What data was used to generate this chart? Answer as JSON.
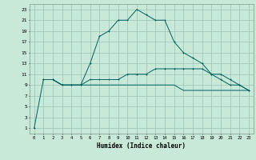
{
  "xlabel": "Humidex (Indice chaleur)",
  "bg_color": "#c8e8d8",
  "grid_color": "#a0c8b8",
  "line_color": "#006060",
  "xlim": [
    -0.5,
    23.5
  ],
  "ylim": [
    0,
    24
  ],
  "xticks": [
    0,
    1,
    2,
    3,
    4,
    5,
    6,
    7,
    8,
    9,
    10,
    11,
    12,
    13,
    14,
    15,
    16,
    17,
    18,
    19,
    20,
    21,
    22,
    23
  ],
  "yticks": [
    1,
    3,
    5,
    7,
    9,
    11,
    13,
    15,
    17,
    19,
    21,
    23
  ],
  "line1_x": [
    0,
    1,
    2,
    3,
    4,
    5,
    6,
    7,
    8,
    9,
    10,
    11,
    12,
    13,
    14,
    15,
    16,
    17,
    18,
    19,
    20,
    21,
    22,
    23
  ],
  "line1_y": [
    1,
    10,
    10,
    9,
    9,
    9,
    13,
    18,
    19,
    21,
    21,
    23,
    22,
    21,
    21,
    17,
    15,
    14,
    13,
    11,
    10,
    9,
    9,
    8
  ],
  "line2_x": [
    1,
    2,
    3,
    4,
    5,
    6,
    7,
    8,
    9,
    10,
    11,
    12,
    13,
    14,
    15,
    16,
    17,
    18,
    19,
    20,
    21,
    22,
    23
  ],
  "line2_y": [
    10,
    10,
    9,
    9,
    9,
    10,
    10,
    10,
    10,
    11,
    11,
    11,
    12,
    12,
    12,
    12,
    12,
    12,
    11,
    11,
    10,
    9,
    8
  ],
  "line3_x": [
    1,
    2,
    3,
    4,
    5,
    6,
    7,
    8,
    9,
    10,
    11,
    12,
    13,
    14,
    15,
    16,
    17,
    18,
    19,
    20,
    21,
    22,
    23
  ],
  "line3_y": [
    10,
    10,
    9,
    9,
    9,
    9,
    9,
    9,
    9,
    9,
    9,
    9,
    9,
    9,
    9,
    8,
    8,
    8,
    8,
    8,
    8,
    8,
    8
  ]
}
